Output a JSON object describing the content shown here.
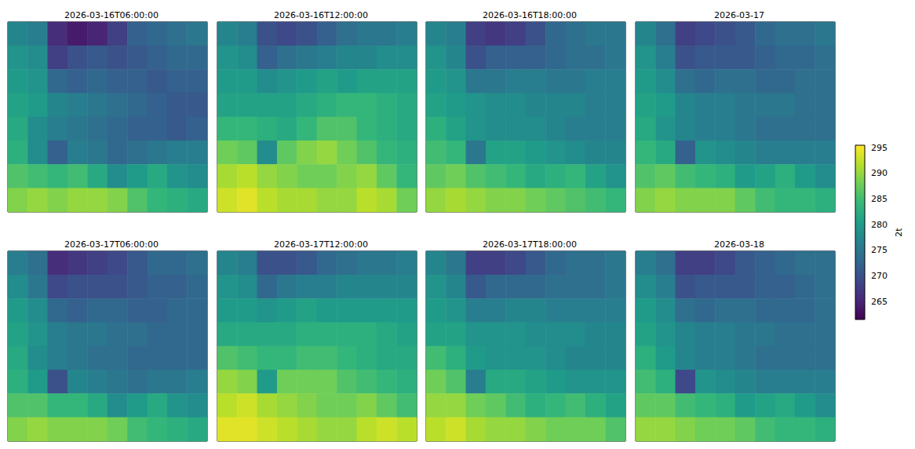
{
  "chart_data": {
    "type": "heatmap",
    "tick_labels": false,
    "colorbar": {
      "label": "2t",
      "range": [
        261.5,
        295.5
      ],
      "ticks": [
        265,
        270,
        275,
        280,
        285,
        290,
        295
      ]
    },
    "panels": [
      {
        "title": "2026-03-16T06:00:00",
        "cells": [
          [
            277,
            276,
            266,
            264,
            265,
            268,
            272,
            273,
            274,
            275
          ],
          [
            279,
            278,
            268,
            270,
            271,
            270,
            271,
            272,
            273,
            273
          ],
          [
            280,
            279,
            273,
            272,
            273,
            272,
            272,
            271,
            272,
            272
          ],
          [
            281,
            280,
            277,
            276,
            275,
            274,
            273,
            272,
            271,
            271
          ],
          [
            282,
            278,
            276,
            275,
            274,
            273,
            272,
            272,
            271,
            272
          ],
          [
            283,
            278,
            272,
            276,
            275,
            273,
            274,
            275,
            276,
            276
          ],
          [
            286,
            285,
            284,
            285,
            282,
            278,
            280,
            282,
            279,
            278
          ],
          [
            289,
            290,
            289,
            290,
            290,
            289,
            286,
            284,
            283,
            282
          ]
        ]
      },
      {
        "title": "2026-03-16T12:00:00",
        "cells": [
          [
            277,
            276,
            270,
            269,
            270,
            272,
            274,
            275,
            275,
            276
          ],
          [
            279,
            278,
            272,
            274,
            275,
            276,
            277,
            277,
            278,
            278
          ],
          [
            280,
            280,
            278,
            279,
            280,
            281,
            280,
            281,
            281,
            281
          ],
          [
            281,
            281,
            281,
            281,
            282,
            283,
            284,
            284,
            283,
            282
          ],
          [
            284,
            284,
            283,
            282,
            284,
            286,
            286,
            284,
            283,
            282
          ],
          [
            288,
            287,
            278,
            287,
            289,
            290,
            288,
            286,
            284,
            283
          ],
          [
            291,
            292,
            290,
            289,
            288,
            288,
            289,
            290,
            287,
            284
          ],
          [
            293,
            294,
            292,
            291,
            291,
            290,
            290,
            292,
            291,
            288
          ]
        ]
      },
      {
        "title": "2026-03-16T18:00:00",
        "cells": [
          [
            277,
            276,
            268,
            267,
            268,
            270,
            273,
            274,
            275,
            275
          ],
          [
            279,
            277,
            270,
            272,
            272,
            272,
            273,
            274,
            274,
            275
          ],
          [
            280,
            279,
            275,
            275,
            276,
            276,
            275,
            275,
            276,
            276
          ],
          [
            281,
            280,
            279,
            278,
            278,
            277,
            277,
            277,
            276,
            276
          ],
          [
            283,
            281,
            279,
            278,
            278,
            278,
            277,
            276,
            276,
            276
          ],
          [
            285,
            284,
            275,
            281,
            281,
            280,
            279,
            278,
            277,
            277
          ],
          [
            287,
            288,
            286,
            285,
            284,
            282,
            283,
            284,
            281,
            279
          ],
          [
            290,
            291,
            290,
            289,
            289,
            288,
            287,
            286,
            285,
            284
          ]
        ]
      },
      {
        "title": "2026-03-17",
        "cells": [
          [
            277,
            274,
            268,
            269,
            270,
            271,
            273,
            274,
            274,
            275
          ],
          [
            279,
            276,
            270,
            271,
            271,
            271,
            272,
            273,
            273,
            274
          ],
          [
            280,
            278,
            274,
            273,
            274,
            274,
            273,
            273,
            274,
            274
          ],
          [
            281,
            280,
            277,
            276,
            276,
            275,
            275,
            275,
            274,
            274
          ],
          [
            282,
            279,
            277,
            276,
            276,
            275,
            274,
            274,
            274,
            274
          ],
          [
            284,
            282,
            272,
            279,
            278,
            277,
            276,
            276,
            276,
            276
          ],
          [
            286,
            287,
            285,
            284,
            283,
            280,
            281,
            283,
            280,
            278
          ],
          [
            289,
            290,
            289,
            289,
            289,
            287,
            285,
            284,
            284,
            283
          ]
        ]
      },
      {
        "title": "2026-03-17T06:00:00",
        "cells": [
          [
            276,
            274,
            266,
            267,
            268,
            269,
            271,
            273,
            273,
            274
          ],
          [
            278,
            275,
            269,
            270,
            270,
            270,
            271,
            272,
            272,
            273
          ],
          [
            280,
            278,
            273,
            272,
            273,
            273,
            272,
            272,
            273,
            273
          ],
          [
            281,
            279,
            276,
            275,
            275,
            274,
            274,
            273,
            273,
            273
          ],
          [
            282,
            278,
            276,
            275,
            274,
            274,
            273,
            273,
            273,
            273
          ],
          [
            283,
            280,
            270,
            277,
            276,
            275,
            274,
            275,
            275,
            276
          ],
          [
            286,
            286,
            284,
            284,
            282,
            278,
            280,
            282,
            279,
            278
          ],
          [
            289,
            290,
            289,
            289,
            289,
            288,
            285,
            284,
            283,
            282
          ]
        ]
      },
      {
        "title": "2026-03-17T12:00:00",
        "cells": [
          [
            277,
            276,
            270,
            270,
            271,
            273,
            274,
            275,
            275,
            276
          ],
          [
            279,
            278,
            273,
            275,
            276,
            276,
            277,
            277,
            277,
            277
          ],
          [
            280,
            280,
            279,
            280,
            281,
            280,
            280,
            280,
            280,
            280
          ],
          [
            282,
            282,
            282,
            282,
            283,
            283,
            283,
            283,
            282,
            281
          ],
          [
            286,
            285,
            284,
            284,
            285,
            285,
            284,
            283,
            282,
            282
          ],
          [
            290,
            289,
            280,
            288,
            288,
            288,
            286,
            285,
            284,
            283
          ],
          [
            292,
            293,
            291,
            290,
            289,
            288,
            288,
            289,
            287,
            285
          ],
          [
            294,
            294,
            293,
            292,
            291,
            290,
            290,
            292,
            293,
            292
          ]
        ]
      },
      {
        "title": "2026-03-17T18:00:00",
        "cells": [
          [
            277,
            275,
            268,
            268,
            269,
            271,
            273,
            274,
            274,
            275
          ],
          [
            279,
            277,
            271,
            273,
            273,
            273,
            274,
            274,
            274,
            275
          ],
          [
            280,
            279,
            276,
            276,
            277,
            277,
            276,
            276,
            276,
            276
          ],
          [
            281,
            281,
            279,
            279,
            279,
            278,
            278,
            278,
            277,
            277
          ],
          [
            285,
            283,
            280,
            279,
            279,
            279,
            278,
            277,
            277,
            277
          ],
          [
            288,
            286,
            276,
            282,
            282,
            281,
            280,
            279,
            279,
            279
          ],
          [
            290,
            290,
            288,
            287,
            285,
            283,
            284,
            285,
            283,
            281
          ],
          [
            292,
            293,
            291,
            290,
            290,
            289,
            288,
            288,
            288,
            286
          ]
        ]
      },
      {
        "title": "2026-03-18",
        "cells": [
          [
            276,
            274,
            268,
            268,
            269,
            271,
            272,
            273,
            274,
            274
          ],
          [
            278,
            276,
            270,
            271,
            271,
            271,
            272,
            272,
            273,
            274
          ],
          [
            280,
            278,
            274,
            273,
            274,
            274,
            273,
            273,
            273,
            274
          ],
          [
            281,
            279,
            277,
            276,
            276,
            275,
            275,
            274,
            274,
            274
          ],
          [
            283,
            280,
            277,
            276,
            276,
            275,
            274,
            274,
            274,
            274
          ],
          [
            285,
            283,
            269,
            279,
            278,
            277,
            276,
            276,
            276,
            276
          ],
          [
            287,
            287,
            285,
            284,
            283,
            280,
            281,
            282,
            280,
            278
          ],
          [
            290,
            290,
            289,
            288,
            288,
            287,
            285,
            284,
            284,
            283
          ]
        ]
      }
    ]
  }
}
